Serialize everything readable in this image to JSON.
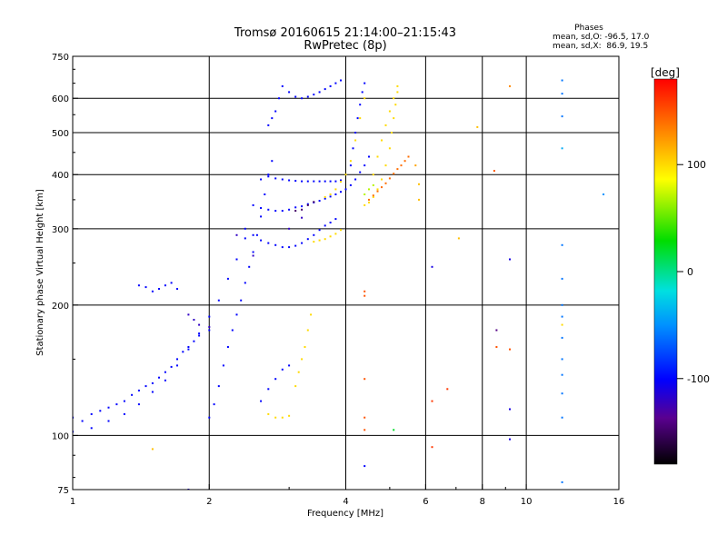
{
  "header": {
    "title": "Tromsø 20160615 21:14:00–21:15:43",
    "subtitle": "RwPretec (8p)",
    "phases_title": "Phases",
    "phases_o": "mean, sd,O: -96.5, 17.0",
    "phases_x": "mean, sd,X:  86.9, 19.5"
  },
  "chart_data": {
    "type": "scatter",
    "title": "Tromsø 20160615 21:14:00–21:15:43",
    "subtitle": "RwPretec (8p)",
    "xlabel": "Frequency [MHz]",
    "ylabel": "Stationary phase Virtual Height [km]",
    "x_scale": "log",
    "y_scale": "log",
    "xlim": [
      1,
      16
    ],
    "ylim": [
      75,
      750
    ],
    "x_ticks": [
      1,
      2,
      4,
      6,
      8,
      10,
      16
    ],
    "x_tick_labels": [
      "1",
      "2",
      "4",
      "6",
      "8",
      "10",
      "16"
    ],
    "y_ticks": [
      75,
      100,
      200,
      300,
      400,
      500,
      600,
      750
    ],
    "y_tick_labels": [
      "75",
      "100",
      "200",
      "300",
      "400",
      "500",
      "600",
      "750"
    ],
    "grid": true,
    "colorbar": {
      "label": "[deg]",
      "range": [
        -180,
        180
      ],
      "ticks": [
        100,
        0,
        -100
      ],
      "tick_labels": [
        "100",
        "0",
        "-100"
      ]
    },
    "traces": [
      {
        "phase": -100,
        "points": [
          [
            1.0,
            110
          ],
          [
            1.05,
            108
          ],
          [
            1.1,
            112
          ],
          [
            1.15,
            114
          ],
          [
            1.2,
            116
          ],
          [
            1.25,
            118
          ],
          [
            1.3,
            120
          ],
          [
            1.35,
            124
          ],
          [
            1.4,
            127
          ],
          [
            1.45,
            130
          ],
          [
            1.5,
            132
          ],
          [
            1.55,
            136
          ],
          [
            1.6,
            140
          ],
          [
            1.65,
            144
          ],
          [
            1.7,
            150
          ],
          [
            1.75,
            156
          ],
          [
            1.8,
            160
          ],
          [
            1.85,
            165
          ],
          [
            1.9,
            170
          ],
          [
            2.0,
            175
          ]
        ]
      },
      {
        "phase": -100,
        "points": [
          [
            1.0,
            102
          ],
          [
            1.1,
            104
          ],
          [
            1.2,
            108
          ],
          [
            1.3,
            112
          ],
          [
            1.4,
            118
          ],
          [
            1.5,
            126
          ],
          [
            1.6,
            134
          ],
          [
            1.7,
            145
          ],
          [
            1.8,
            158
          ],
          [
            1.9,
            172
          ],
          [
            2.0,
            188
          ],
          [
            2.1,
            205
          ],
          [
            2.2,
            230
          ],
          [
            2.3,
            255
          ],
          [
            2.4,
            285
          ]
        ]
      },
      {
        "phase": -100,
        "points": [
          [
            1.4,
            222
          ],
          [
            1.45,
            220
          ],
          [
            1.5,
            215
          ],
          [
            1.55,
            218
          ],
          [
            1.6,
            222
          ],
          [
            1.65,
            225
          ],
          [
            1.7,
            218
          ]
        ]
      },
      {
        "phase": -100,
        "points": [
          [
            2.0,
            110
          ],
          [
            2.05,
            118
          ],
          [
            2.1,
            130
          ],
          [
            2.15,
            145
          ],
          [
            2.2,
            160
          ],
          [
            2.25,
            175
          ],
          [
            2.3,
            190
          ],
          [
            2.35,
            205
          ],
          [
            2.4,
            225
          ],
          [
            2.45,
            245
          ],
          [
            2.5,
            265
          ],
          [
            2.55,
            290
          ],
          [
            2.6,
            320
          ],
          [
            2.65,
            360
          ],
          [
            2.7,
            400
          ],
          [
            2.75,
            430
          ]
        ]
      },
      {
        "phase": -100,
        "points": [
          [
            2.4,
            300
          ],
          [
            2.5,
            290
          ],
          [
            2.6,
            282
          ],
          [
            2.7,
            278
          ],
          [
            2.8,
            275
          ],
          [
            2.9,
            272
          ],
          [
            3.0,
            272
          ],
          [
            3.1,
            274
          ],
          [
            3.2,
            278
          ],
          [
            3.3,
            284
          ],
          [
            3.4,
            290
          ],
          [
            3.5,
            298
          ],
          [
            3.6,
            305
          ],
          [
            3.7,
            310
          ],
          [
            3.8,
            316
          ]
        ]
      },
      {
        "phase": -100,
        "points": [
          [
            2.5,
            340
          ],
          [
            2.6,
            335
          ],
          [
            2.7,
            332
          ],
          [
            2.8,
            330
          ],
          [
            2.9,
            330
          ],
          [
            3.0,
            332
          ],
          [
            3.1,
            336
          ],
          [
            3.2,
            338
          ],
          [
            3.3,
            342
          ],
          [
            3.4,
            345
          ],
          [
            3.5,
            348
          ],
          [
            3.6,
            352
          ],
          [
            3.7,
            356
          ],
          [
            3.8,
            360
          ],
          [
            3.9,
            365
          ],
          [
            4.0,
            370
          ],
          [
            4.1,
            378
          ],
          [
            4.2,
            390
          ],
          [
            4.3,
            405
          ],
          [
            4.4,
            420
          ],
          [
            4.5,
            440
          ]
        ]
      },
      {
        "phase": -100,
        "points": [
          [
            2.6,
            390
          ],
          [
            2.7,
            396
          ],
          [
            2.8,
            392
          ],
          [
            2.9,
            390
          ],
          [
            3.0,
            388
          ],
          [
            3.1,
            387
          ],
          [
            3.2,
            386
          ],
          [
            3.3,
            386
          ],
          [
            3.4,
            386
          ],
          [
            3.5,
            386
          ],
          [
            3.6,
            386
          ],
          [
            3.7,
            386
          ],
          [
            3.8,
            386
          ],
          [
            3.9,
            388
          ]
        ]
      },
      {
        "phase": -100,
        "points": [
          [
            2.7,
            520
          ],
          [
            2.75,
            540
          ],
          [
            2.8,
            560
          ],
          [
            2.85,
            600
          ],
          [
            2.9,
            640
          ],
          [
            3.0,
            620
          ],
          [
            3.1,
            605
          ],
          [
            3.2,
            600
          ],
          [
            3.3,
            605
          ],
          [
            3.4,
            612
          ],
          [
            3.5,
            620
          ],
          [
            3.6,
            630
          ],
          [
            3.7,
            640
          ],
          [
            3.8,
            650
          ],
          [
            3.9,
            660
          ]
        ]
      },
      {
        "phase": -100,
        "points": [
          [
            2.6,
            120
          ],
          [
            2.7,
            128
          ],
          [
            2.8,
            135
          ],
          [
            2.9,
            142
          ],
          [
            3.0,
            145
          ]
        ]
      },
      {
        "phase": -100,
        "points": [
          [
            4.1,
            420
          ],
          [
            4.15,
            460
          ],
          [
            4.2,
            500
          ],
          [
            4.25,
            540
          ],
          [
            4.3,
            580
          ],
          [
            4.35,
            620
          ],
          [
            4.4,
            650
          ]
        ]
      },
      {
        "phase": -120,
        "points": [
          [
            1.8,
            190
          ],
          [
            1.85,
            185
          ],
          [
            1.9,
            180
          ],
          [
            2.0,
            178
          ],
          [
            2.3,
            290
          ],
          [
            2.5,
            260
          ],
          [
            3.0,
            300
          ],
          [
            3.2,
            318
          ]
        ]
      },
      {
        "phase": -150,
        "points": [
          [
            3.1,
            330
          ],
          [
            3.2,
            332
          ],
          [
            3.3,
            340
          ],
          [
            3.4,
            346
          ]
        ]
      },
      {
        "phase": 100,
        "points": [
          [
            3.6,
            355
          ],
          [
            3.7,
            360
          ],
          [
            3.8,
            370
          ],
          [
            3.9,
            385
          ],
          [
            4.0,
            400
          ],
          [
            4.1,
            430
          ],
          [
            4.2,
            480
          ],
          [
            4.3,
            540
          ],
          [
            4.4,
            600
          ]
        ]
      },
      {
        "phase": 100,
        "points": [
          [
            2.7,
            112
          ],
          [
            2.8,
            110
          ],
          [
            2.9,
            110
          ],
          [
            3.0,
            111
          ]
        ]
      },
      {
        "phase": 100,
        "points": [
          [
            3.1,
            130
          ],
          [
            3.15,
            140
          ],
          [
            3.2,
            150
          ],
          [
            3.25,
            160
          ],
          [
            3.3,
            175
          ],
          [
            3.35,
            190
          ]
        ]
      },
      {
        "phase": 100,
        "points": [
          [
            3.4,
            280
          ],
          [
            3.5,
            282
          ],
          [
            3.6,
            284
          ],
          [
            3.7,
            288
          ],
          [
            3.8,
            292
          ],
          [
            3.9,
            298
          ]
        ]
      },
      {
        "phase": 100,
        "points": [
          [
            4.4,
            340
          ],
          [
            4.5,
            345
          ],
          [
            4.6,
            355
          ],
          [
            4.7,
            370
          ],
          [
            4.8,
            390
          ],
          [
            4.9,
            420
          ],
          [
            5.0,
            460
          ],
          [
            5.05,
            500
          ],
          [
            5.1,
            540
          ],
          [
            5.15,
            580
          ],
          [
            5.2,
            620
          ]
        ]
      },
      {
        "phase": 100,
        "points": [
          [
            4.6,
            400
          ],
          [
            4.7,
            440
          ],
          [
            4.8,
            480
          ],
          [
            4.9,
            520
          ],
          [
            5.0,
            560
          ],
          [
            5.1,
            600
          ],
          [
            5.2,
            640
          ]
        ]
      },
      {
        "phase": 140,
        "points": [
          [
            4.5,
            350
          ],
          [
            4.6,
            358
          ],
          [
            4.7,
            366
          ],
          [
            4.8,
            374
          ],
          [
            4.9,
            382
          ],
          [
            5.0,
            392
          ],
          [
            5.1,
            402
          ],
          [
            5.2,
            412
          ],
          [
            5.3,
            420
          ],
          [
            5.4,
            430
          ],
          [
            5.5,
            440
          ]
        ]
      },
      {
        "phase": 70,
        "points": [
          [
            4.4,
            360
          ],
          [
            4.5,
            370
          ],
          [
            4.6,
            378
          ]
        ]
      }
    ],
    "isolated_points": [
      {
        "f": 1.5,
        "h": 93,
        "phase": 110
      },
      {
        "f": 1.8,
        "h": 75,
        "phase": -110
      },
      {
        "f": 4.4,
        "h": 210,
        "phase": 150
      },
      {
        "f": 4.4,
        "h": 215,
        "phase": 150
      },
      {
        "f": 4.4,
        "h": 135,
        "phase": 150
      },
      {
        "f": 4.4,
        "h": 110,
        "phase": 150
      },
      {
        "f": 4.4,
        "h": 103,
        "phase": 150
      },
      {
        "f": 4.4,
        "h": 85,
        "phase": -100
      },
      {
        "f": 5.1,
        "h": 103,
        "phase": 20
      },
      {
        "f": 5.7,
        "h": 420,
        "phase": 120
      },
      {
        "f": 5.8,
        "h": 380,
        "phase": 110
      },
      {
        "f": 5.8,
        "h": 350,
        "phase": 110
      },
      {
        "f": 6.2,
        "h": 245,
        "phase": -110
      },
      {
        "f": 6.2,
        "h": 120,
        "phase": 160
      },
      {
        "f": 6.2,
        "h": 94,
        "phase": 160
      },
      {
        "f": 6.7,
        "h": 128,
        "phase": 160
      },
      {
        "f": 7.1,
        "h": 285,
        "phase": 110
      },
      {
        "f": 7.8,
        "h": 515,
        "phase": 110
      },
      {
        "f": 8.5,
        "h": 408,
        "phase": 150
      },
      {
        "f": 8.6,
        "h": 175,
        "phase": -140
      },
      {
        "f": 8.6,
        "h": 160,
        "phase": 150
      },
      {
        "f": 9.2,
        "h": 158,
        "phase": 150
      },
      {
        "f": 9.2,
        "h": 255,
        "phase": -110
      },
      {
        "f": 9.2,
        "h": 115,
        "phase": -110
      },
      {
        "f": 9.2,
        "h": 98,
        "phase": -110
      },
      {
        "f": 9.2,
        "h": 640,
        "phase": 130
      },
      {
        "f": 12.0,
        "h": 660,
        "phase": -60
      },
      {
        "f": 12.0,
        "h": 615,
        "phase": -60
      },
      {
        "f": 12.0,
        "h": 545,
        "phase": -60
      },
      {
        "f": 12.0,
        "h": 460,
        "phase": -40
      },
      {
        "f": 12.0,
        "h": 275,
        "phase": -60
      },
      {
        "f": 12.0,
        "h": 230,
        "phase": -60
      },
      {
        "f": 12.0,
        "h": 200,
        "phase": -60
      },
      {
        "f": 12.0,
        "h": 188,
        "phase": -60
      },
      {
        "f": 12.0,
        "h": 180,
        "phase": 100
      },
      {
        "f": 12.0,
        "h": 168,
        "phase": -60
      },
      {
        "f": 12.0,
        "h": 150,
        "phase": -60
      },
      {
        "f": 12.0,
        "h": 138,
        "phase": -60
      },
      {
        "f": 12.0,
        "h": 125,
        "phase": -60
      },
      {
        "f": 12.0,
        "h": 110,
        "phase": -60
      },
      {
        "f": 12.0,
        "h": 78,
        "phase": -60
      },
      {
        "f": 14.8,
        "h": 360,
        "phase": -50
      }
    ]
  }
}
